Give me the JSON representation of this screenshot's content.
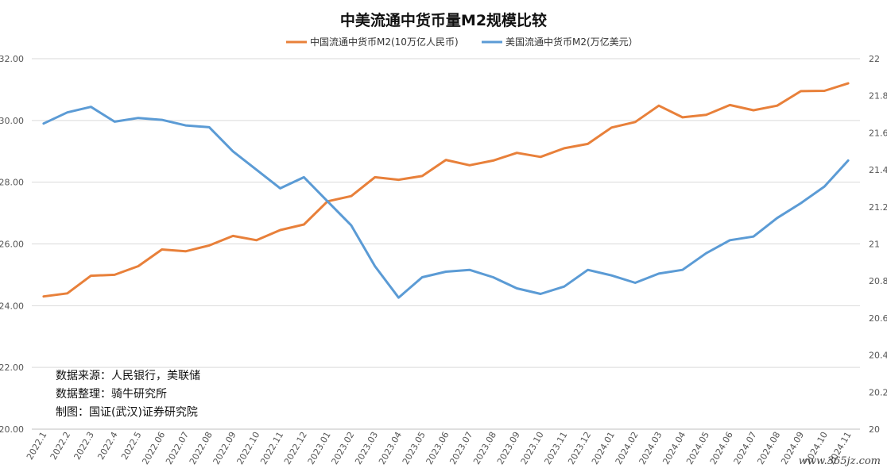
{
  "chart_data": {
    "type": "line",
    "title": "中美流通中货币量M2规模比较",
    "categories": [
      "2022.1",
      "2022.2",
      "2022.3",
      "2022.4",
      "2022.5",
      "2022.06",
      "2022.07",
      "2022.08",
      "2022.09",
      "2022.10",
      "2022.11",
      "2022.12",
      "2023.01",
      "2023.02",
      "2023.03",
      "2023.04",
      "2023.05",
      "2023.06",
      "2023.07",
      "2023.08",
      "2023.09",
      "2023.10",
      "2023.11",
      "2023.12",
      "2024.01",
      "2024.02",
      "2024.03",
      "2024.04",
      "2024.05",
      "2024.06",
      "2024.07",
      "2024.08",
      "2024.09",
      "2024.10",
      "2024.11"
    ],
    "left_axis": {
      "ticks": [
        "32.00",
        "30.00",
        "28.00",
        "26.00",
        "24.00",
        "22.00",
        "20.00"
      ],
      "min": 20,
      "max": 32
    },
    "right_axis": {
      "ticks": [
        "22",
        "21.8",
        "21.6",
        "21.4",
        "21.2",
        "21",
        "20.8",
        "20.6",
        "20.4",
        "20.2",
        "20"
      ],
      "min": 20,
      "max": 22
    },
    "grid": true,
    "legend_position": "top-center",
    "series": [
      {
        "name": "中国流通中货币M2(10万亿人民币)",
        "axis": "left",
        "color": "#E8803A",
        "values": [
          24.3,
          24.4,
          24.97,
          25.0,
          25.28,
          25.82,
          25.76,
          25.95,
          26.26,
          26.12,
          26.45,
          26.63,
          27.38,
          27.55,
          28.16,
          28.08,
          28.2,
          28.72,
          28.55,
          28.7,
          28.95,
          28.82,
          29.1,
          29.24,
          29.77,
          29.95,
          30.48,
          30.1,
          30.18,
          30.5,
          30.33,
          30.48,
          30.95,
          30.96,
          31.2
        ]
      },
      {
        "name": "美国流通中货币M2(万亿美元）",
        "axis": "right",
        "color": "#5B9BD5",
        "values": [
          21.65,
          21.71,
          21.74,
          21.66,
          21.68,
          21.67,
          21.64,
          21.63,
          21.5,
          21.4,
          21.3,
          21.36,
          21.23,
          21.1,
          20.88,
          20.71,
          20.82,
          20.85,
          20.86,
          20.82,
          20.76,
          20.73,
          20.77,
          20.86,
          20.83,
          20.79,
          20.84,
          20.86,
          20.95,
          21.02,
          21.04,
          21.14,
          21.22,
          21.31,
          21.45
        ]
      }
    ]
  },
  "notes": [
    "数据来源：人民银行，美联储",
    "数据整理：骑牛研究所",
    "制图：国证(武汉)证券研究院"
  ],
  "watermark": "www.365jz.com"
}
